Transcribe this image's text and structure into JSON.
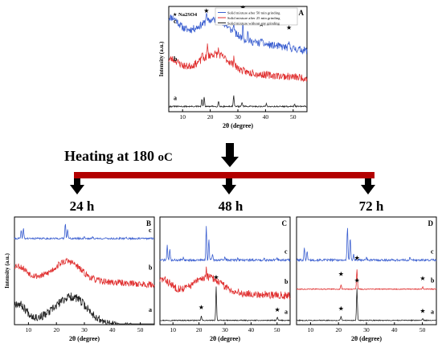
{
  "process": {
    "heating_label": "Heating at 180 ",
    "heating_unit": "oC",
    "times": [
      "24 h",
      "48 h",
      "72 h"
    ]
  },
  "colors": {
    "c_blue": "#3b5fd0",
    "b_red": "#e03030",
    "a_black": "#222222",
    "bar": "#b30000"
  },
  "chart_data": [
    {
      "id": "A",
      "type": "line",
      "panel_label": "A",
      "xlabel": "2θ (degree)",
      "ylabel": "Intensity (a.u.)",
      "xlim": [
        5,
        55
      ],
      "xticks": [
        10,
        20,
        30,
        40,
        50
      ],
      "legend": {
        "marker_label": "Na2SO4",
        "entries": [
          {
            "text": "Solid mixture after 50 min grinding",
            "color": "#3b5fd0"
          },
          {
            "text": "Solid mixture after 25 min grinding",
            "color": "#e03030"
          },
          {
            "text": "Solid mixture without any grinding",
            "color": "#222222"
          }
        ]
      },
      "series": [
        {
          "label": "c",
          "color": "#3b5fd0",
          "offset": 0.78,
          "noise": 0.035,
          "seed": 11,
          "humps": [
            [
              6,
              0.12,
              2.5
            ],
            [
              22,
              0.16,
              5
            ]
          ],
          "base_slope": -0.2,
          "peaks": [
            [
              18.6,
              0.1
            ],
            [
              28.5,
              0.1
            ],
            [
              31.8,
              0.14
            ],
            [
              33.6,
              0.08
            ],
            [
              38.5,
              0.06
            ],
            [
              48.5,
              0.05
            ]
          ]
        },
        {
          "label": "b",
          "color": "#e03030",
          "offset": 0.42,
          "noise": 0.035,
          "seed": 23,
          "humps": [
            [
              6,
              0.08,
              2.5
            ],
            [
              22,
              0.16,
              5
            ]
          ],
          "base_slope": -0.1,
          "peaks": [
            [
              17,
              0.08
            ],
            [
              19,
              0.1
            ],
            [
              23,
              0.05
            ],
            [
              28.6,
              0.09
            ],
            [
              35.5,
              0.05
            ]
          ]
        },
        {
          "label": "a",
          "color": "#222222",
          "offset": 0.05,
          "noise": 0.006,
          "seed": 31,
          "humps": [],
          "base_slope": 0,
          "peaks": [
            [
              17,
              0.07
            ],
            [
              17.8,
              0.09
            ],
            [
              23,
              0.05
            ],
            [
              28.5,
              0.11
            ],
            [
              31.5,
              0.04
            ],
            [
              40.3,
              0.025
            ],
            [
              50.5,
              0.02
            ]
          ]
        }
      ],
      "markers": [
        [
          18.6,
          0.94
        ],
        [
          28.5,
          0.91
        ],
        [
          31.8,
          0.97
        ],
        [
          33.6,
          0.88
        ],
        [
          38.5,
          0.81
        ],
        [
          48.5,
          0.78
        ]
      ]
    },
    {
      "id": "B",
      "type": "line",
      "panel_label": "B",
      "xlabel": "2θ (degree)",
      "ylabel": "Intensity (a.u.)",
      "xlim": [
        5,
        55
      ],
      "xticks": [
        10,
        20,
        30,
        40,
        50
      ],
      "series": [
        {
          "label": "c",
          "color": "#3b5fd0",
          "offset": 0.8,
          "noise": 0.008,
          "seed": 41,
          "humps": [],
          "base_slope": 0,
          "peaks": [
            [
              7.4,
              0.07
            ],
            [
              8.2,
              0.09
            ],
            [
              23.2,
              0.14
            ],
            [
              24,
              0.09
            ],
            [
              30,
              0.02
            ],
            [
              33,
              0.015
            ],
            [
              45,
              0.01
            ]
          ]
        },
        {
          "label": "b",
          "color": "#e03030",
          "offset": 0.45,
          "noise": 0.03,
          "seed": 53,
          "humps": [
            [
              6,
              0.1,
              3
            ],
            [
              24,
              0.17,
              4.5
            ]
          ],
          "base_slope": -0.08,
          "peaks": []
        },
        {
          "label": "a",
          "color": "#222222",
          "offset": 0.06,
          "noise": 0.04,
          "seed": 67,
          "humps": [
            [
              6,
              0.14,
              3
            ],
            [
              25.5,
              0.24,
              5.5
            ]
          ],
          "base_slope": -0.1,
          "peaks": []
        }
      ],
      "markers": []
    },
    {
      "id": "C",
      "type": "line",
      "panel_label": "C",
      "xlabel": "2θ (degree)",
      "ylabel": "",
      "xlim": [
        5,
        55
      ],
      "xticks": [
        10,
        20,
        30,
        40,
        50
      ],
      "series": [
        {
          "label": "c",
          "color": "#3b5fd0",
          "offset": 0.6,
          "noise": 0.01,
          "seed": 71,
          "humps": [],
          "base_slope": 0,
          "peaks": [
            [
              7.8,
              0.14
            ],
            [
              8.8,
              0.1
            ],
            [
              14,
              0.03
            ],
            [
              22.8,
              0.32
            ],
            [
              23.8,
              0.2
            ],
            [
              25.2,
              0.06
            ],
            [
              30,
              0.03
            ],
            [
              35,
              0.02
            ],
            [
              45,
              0.02
            ],
            [
              50,
              0.015
            ]
          ]
        },
        {
          "label": "b",
          "color": "#e03030",
          "offset": 0.32,
          "noise": 0.035,
          "seed": 83,
          "humps": [
            [
              6,
              0.1,
              3
            ],
            [
              23.5,
              0.14,
              5
            ]
          ],
          "base_slope": -0.05,
          "peaks": [
            [
              22.8,
              0.08
            ]
          ]
        },
        {
          "label": "a",
          "color": "#222222",
          "offset": 0.04,
          "noise": 0.004,
          "seed": 97,
          "humps": [],
          "base_slope": 0,
          "peaks": [
            [
              20.9,
              0.04
            ],
            [
              26.6,
              0.32
            ],
            [
              50.1,
              0.03
            ]
          ]
        }
      ],
      "markers": [
        [
          20.9,
          0.14
        ],
        [
          26.6,
          0.42
        ],
        [
          50.1,
          0.12
        ]
      ]
    },
    {
      "id": "D",
      "type": "line",
      "panel_label": "D",
      "xlabel": "2θ (degree)",
      "ylabel": "",
      "xlim": [
        5,
        55
      ],
      "xticks": [
        10,
        20,
        30,
        40,
        50
      ],
      "series": [
        {
          "label": "c",
          "color": "#3b5fd0",
          "offset": 0.6,
          "noise": 0.01,
          "seed": 101,
          "humps": [],
          "base_slope": 0,
          "peaks": [
            [
              7.8,
              0.12
            ],
            [
              8.8,
              0.08
            ],
            [
              23.2,
              0.3
            ],
            [
              24.2,
              0.2
            ],
            [
              25.4,
              0.06
            ],
            [
              30,
              0.03
            ],
            [
              45.5,
              0.02
            ]
          ]
        },
        {
          "label": "b",
          "color": "#e03030",
          "offset": 0.33,
          "noise": 0.004,
          "seed": 113,
          "humps": [],
          "base_slope": 0,
          "peaks": [
            [
              20.9,
              0.04
            ],
            [
              26.6,
              0.18
            ],
            [
              50.1,
              0.02
            ]
          ]
        },
        {
          "label": "a",
          "color": "#222222",
          "offset": 0.04,
          "noise": 0.004,
          "seed": 127,
          "humps": [],
          "base_slope": 0,
          "peaks": [
            [
              20.9,
              0.04
            ],
            [
              26.6,
              0.3
            ],
            [
              50.1,
              0.02
            ]
          ]
        }
      ],
      "markers": [
        [
          20.9,
          0.45
        ],
        [
          26.6,
          0.6
        ],
        [
          50.1,
          0.41
        ],
        [
          20.9,
          0.13
        ],
        [
          26.6,
          0.39
        ],
        [
          50.1,
          0.11
        ]
      ]
    }
  ]
}
